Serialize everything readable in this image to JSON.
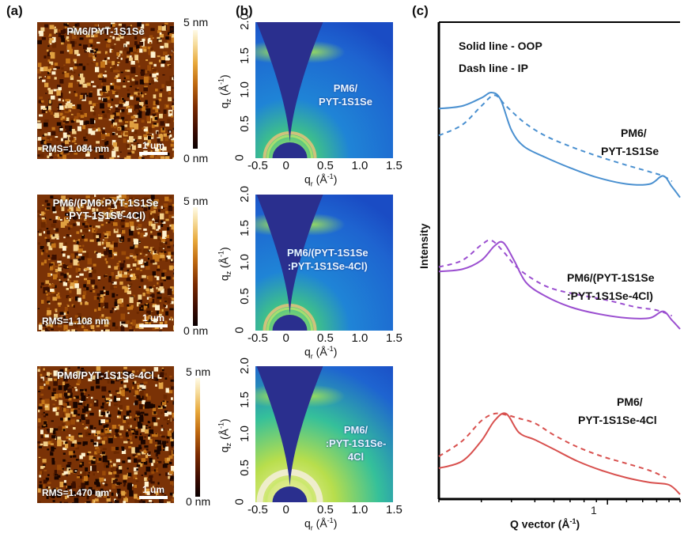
{
  "panels": {
    "a": {
      "label": "(a)",
      "images": [
        {
          "title": [
            "PM6/PYT-1S1Se"
          ],
          "rms": "RMS=1.084 nm",
          "scale": "1 um",
          "cbar_max": "5 nm",
          "cbar_min": "0 nm"
        },
        {
          "title": [
            "PM6/(PM6:PYT-1S1Se",
            ":PYT-1S1Se-4Cl)"
          ],
          "rms": "RMS=1.108 nm",
          "scale": "1 um",
          "cbar_max": "5 nm",
          "cbar_min": "0 nm"
        },
        {
          "title": [
            "PM6/PYT-1S1Se-4Cl"
          ],
          "rms": "RMS=1.470 nm",
          "scale": "1 um",
          "cbar_max": "5 nm",
          "cbar_min": "0 nm"
        }
      ]
    },
    "b": {
      "label": "(b)",
      "xlabel": "qr (Å-1)",
      "ylabel": "qz (Å-1)",
      "xticks": [
        "-0.5",
        "0",
        "0.5",
        "1.0",
        "1.5"
      ],
      "yticks": [
        "0",
        "0.5",
        "1.0",
        "1.5",
        "2.0"
      ],
      "xlim": [
        -0.5,
        1.5
      ],
      "ylim": [
        0,
        2.0
      ],
      "images": [
        {
          "label": [
            "PM6/",
            "PYT-1S1Se"
          ]
        },
        {
          "label": [
            "PM6/(PYT-1S1Se",
            ":PYT-1S1Se-4Cl)"
          ]
        },
        {
          "label": [
            "PM6/",
            ":PYT-1S1Se-4Cl"
          ]
        }
      ]
    },
    "c": {
      "label": "(c)",
      "legend": [
        "Solid line - OOP",
        "Dash line - IP"
      ],
      "xlabel": "Q vector (Å-1)",
      "ylabel": "Intensity",
      "xtick_label": "1",
      "curve_labels": [
        [
          "PM6/",
          "PYT-1S1Se"
        ],
        [
          "PM6/(PYT-1S1Se",
          ":PYT-1S1Se-4Cl)"
        ],
        [
          "PM6/",
          "PYT-1S1Se-4Cl"
        ]
      ]
    }
  },
  "chart_data": {
    "type": "line",
    "title": "",
    "xlabel": "Q vector (Å-1)",
    "ylabel": "Intensity",
    "xscale": "log",
    "xlim": [
      0.2,
      2.0
    ],
    "xticks": [
      1
    ],
    "grid": false,
    "legend_placement": "top-left",
    "note": "Curves offset vertically; intensity in arbitrary normalized units (0-1 within each offset band)",
    "series": [
      {
        "name": "PM6/PYT-1S1Se OOP",
        "style": "solid",
        "color": "#4a90d0",
        "offset": 2,
        "x": [
          0.2,
          0.25,
          0.3,
          0.33,
          0.36,
          0.4,
          0.45,
          0.55,
          0.7,
          0.9,
          1.2,
          1.5,
          1.7,
          1.85,
          2.0
        ],
        "y": [
          0.78,
          0.8,
          0.86,
          0.9,
          0.85,
          0.62,
          0.5,
          0.42,
          0.34,
          0.27,
          0.22,
          0.22,
          0.28,
          0.2,
          0.12
        ]
      },
      {
        "name": "PM6/PYT-1S1Se IP",
        "style": "dash",
        "color": "#4a90d0",
        "offset": 2,
        "x": [
          0.2,
          0.25,
          0.3,
          0.34,
          0.38,
          0.45,
          0.55,
          0.7,
          0.9,
          1.2,
          1.5,
          1.7,
          1.85
        ],
        "y": [
          0.58,
          0.66,
          0.8,
          0.88,
          0.8,
          0.68,
          0.58,
          0.5,
          0.43,
          0.36,
          0.31,
          0.28,
          0.24
        ]
      },
      {
        "name": "PM6/(PYT-1S1Se:PYT-1S1Se-4Cl) OOP",
        "style": "solid",
        "color": "#9b4fd0",
        "offset": 1,
        "x": [
          0.2,
          0.25,
          0.3,
          0.34,
          0.37,
          0.41,
          0.46,
          0.55,
          0.7,
          0.9,
          1.2,
          1.5,
          1.7,
          1.85,
          2.0
        ],
        "y": [
          0.62,
          0.64,
          0.72,
          0.85,
          0.88,
          0.72,
          0.52,
          0.4,
          0.3,
          0.24,
          0.2,
          0.2,
          0.26,
          0.18,
          0.1
        ]
      },
      {
        "name": "PM6/(PYT-1S1Se:PYT-1S1Se-4Cl) IP",
        "style": "dash",
        "color": "#9b4fd0",
        "offset": 1,
        "x": [
          0.2,
          0.25,
          0.3,
          0.33,
          0.37,
          0.42,
          0.5,
          0.6,
          0.8,
          1.0,
          1.3,
          1.6,
          1.85
        ],
        "y": [
          0.66,
          0.72,
          0.86,
          0.9,
          0.8,
          0.66,
          0.54,
          0.46,
          0.4,
          0.36,
          0.3,
          0.27,
          0.22
        ]
      },
      {
        "name": "PM6/PYT-1S1Se-4Cl OOP",
        "style": "solid",
        "color": "#d8504e",
        "offset": 0,
        "x": [
          0.2,
          0.25,
          0.3,
          0.34,
          0.38,
          0.43,
          0.5,
          0.6,
          0.75,
          0.95,
          1.2,
          1.5,
          1.8,
          2.0
        ],
        "y": [
          0.32,
          0.38,
          0.55,
          0.72,
          0.78,
          0.62,
          0.56,
          0.48,
          0.38,
          0.3,
          0.24,
          0.2,
          0.18,
          0.1
        ]
      },
      {
        "name": "PM6/PYT-1S1Se-4Cl IP",
        "style": "dash",
        "color": "#d8504e",
        "offset": 0,
        "x": [
          0.2,
          0.25,
          0.3,
          0.34,
          0.38,
          0.43,
          0.5,
          0.6,
          0.75,
          0.95,
          1.2,
          1.5,
          1.75
        ],
        "y": [
          0.42,
          0.55,
          0.72,
          0.78,
          0.77,
          0.74,
          0.7,
          0.6,
          0.5,
          0.42,
          0.36,
          0.3,
          0.24
        ]
      }
    ]
  }
}
